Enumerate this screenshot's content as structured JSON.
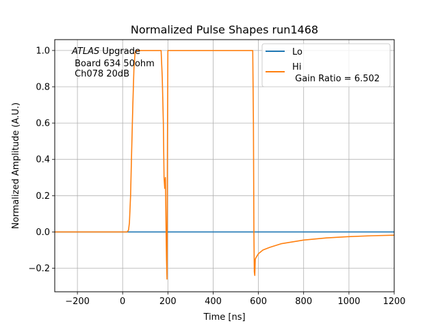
{
  "chart_data": {
    "type": "line",
    "title": "Normalized Pulse Shapes run1468",
    "xlabel": "Time [ns]",
    "ylabel": "Normalized Amplitude (A.U.)",
    "xlim": [
      -300,
      1200
    ],
    "ylim": [
      -0.33,
      1.06
    ],
    "xticks": [
      -200,
      0,
      200,
      400,
      600,
      800,
      1000,
      1200
    ],
    "xtick_labels": [
      "−200",
      "0",
      "200",
      "400",
      "600",
      "800",
      "1000",
      "1200"
    ],
    "yticks": [
      -0.2,
      0.0,
      0.2,
      0.4,
      0.6,
      0.8,
      1.0
    ],
    "ytick_labels": [
      "−0.2",
      "0.0",
      "0.2",
      "0.4",
      "0.6",
      "0.8",
      "1.0"
    ],
    "grid": true,
    "legend_position": "top-right",
    "annotation": {
      "italic": "ATLAS",
      "rest": " Upgrade",
      "line2": " Board 634 50ohm",
      "line3": " Ch078 20dB"
    },
    "series": [
      {
        "name": "Lo",
        "legend_label": "Lo",
        "color": "#1f77b4",
        "x": [
          -300,
          1200
        ],
        "y": [
          0.0,
          0.0
        ]
      },
      {
        "name": "Hi",
        "legend_label": "Hi",
        "legend_label_line2": " Gain Ratio = 6.502",
        "color": "#ff7f0e",
        "x": [
          -300,
          20,
          26,
          30,
          35,
          40,
          45,
          50,
          55,
          60,
          170,
          175,
          180,
          183,
          186,
          189,
          192,
          194,
          196,
          198,
          200,
          202,
          205,
          575,
          578,
          580,
          582,
          584,
          586,
          590,
          600,
          620,
          650,
          700,
          800,
          900,
          1000,
          1100,
          1200
        ],
        "y": [
          0.0,
          0.0,
          0.01,
          0.05,
          0.2,
          0.45,
          0.7,
          0.9,
          0.99,
          1.0,
          1.0,
          0.85,
          0.6,
          0.3,
          0.24,
          0.3,
          0.0,
          -0.15,
          -0.26,
          0.5,
          1.0,
          1.0,
          1.0,
          1.0,
          0.6,
          0.0,
          -0.22,
          -0.24,
          -0.15,
          -0.14,
          -0.12,
          -0.1,
          -0.085,
          -0.065,
          -0.045,
          -0.033,
          -0.026,
          -0.021,
          -0.018
        ]
      }
    ]
  }
}
